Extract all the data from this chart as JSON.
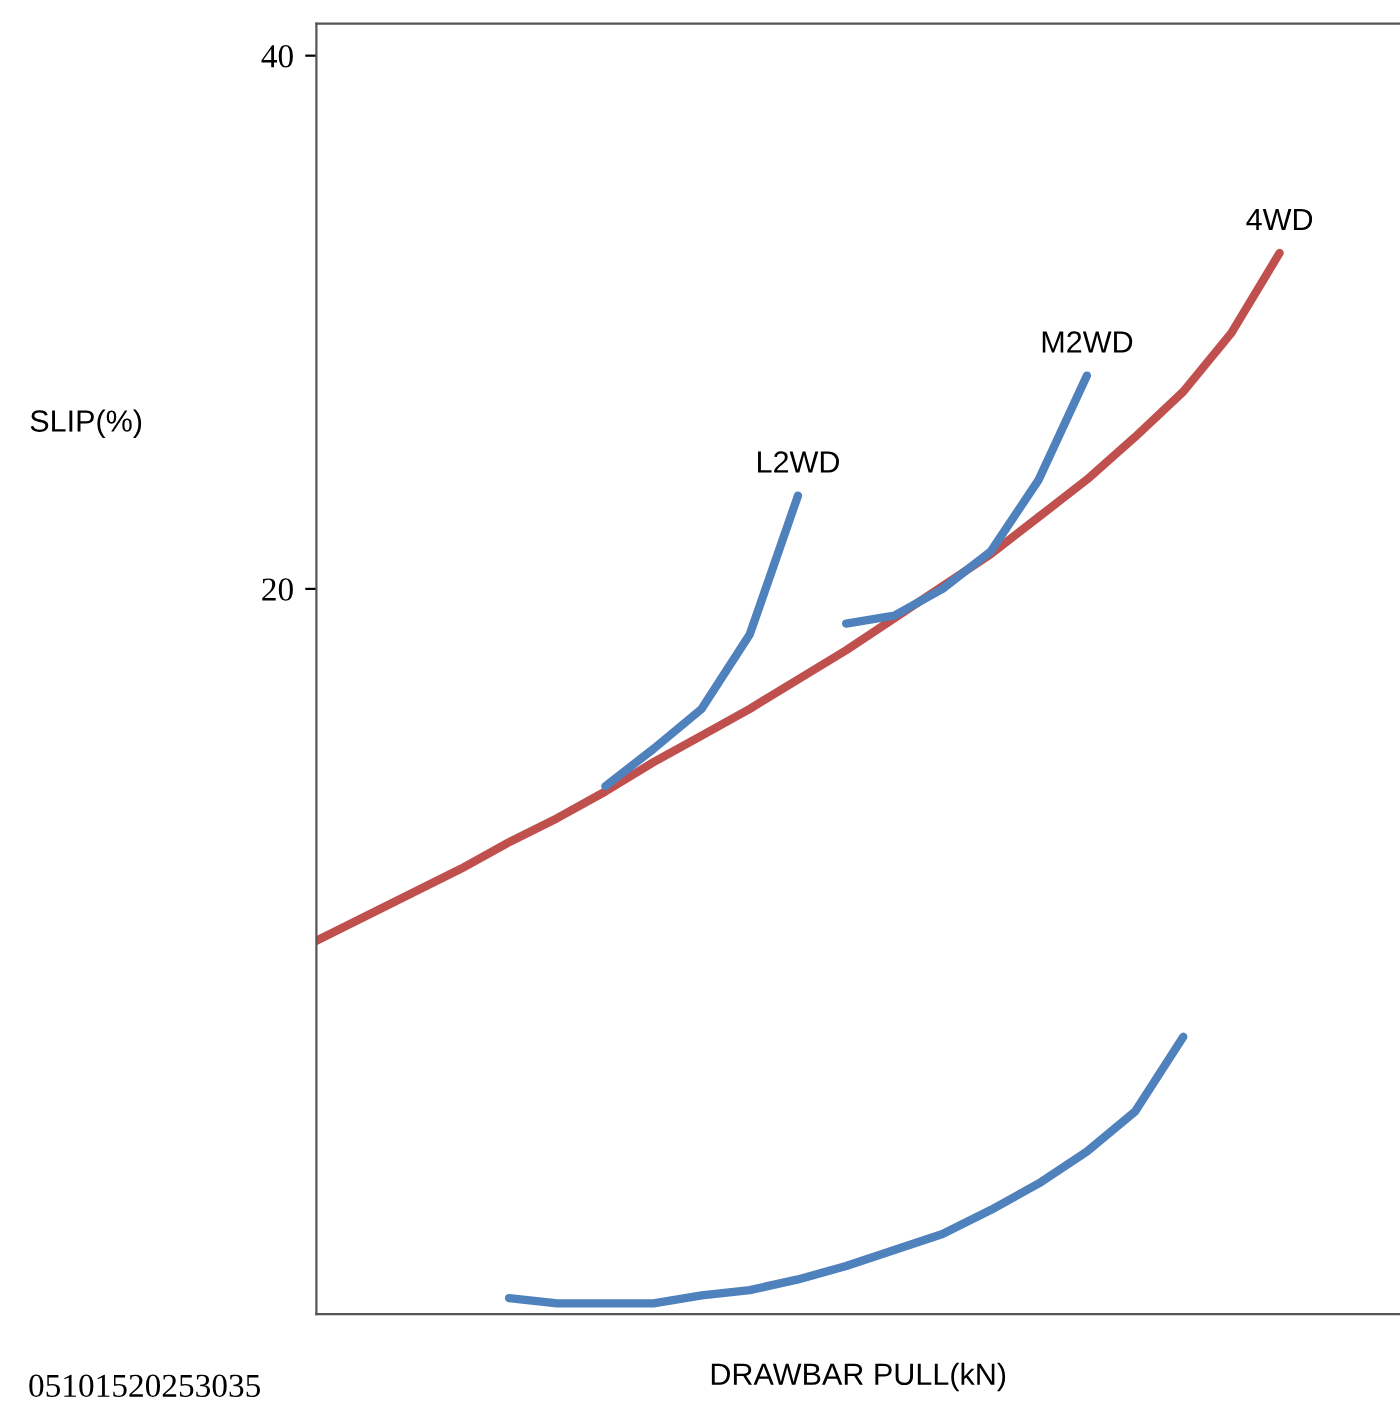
{
  "chart_data": {
    "type": "line",
    "xlabel": "DRAWBAR PULL(kN)",
    "ylabel": "SLIP(%)",
    "categories": [
      null,
      null,
      null,
      null,
      null,
      null,
      null,
      null,
      null,
      null,
      null,
      null,
      null,
      null,
      null,
      null,
      null,
      null,
      null,
      null,
      null,
      null,
      null
    ],
    "ylim": [
      -7.2,
      41.2
    ],
    "yticks": [
      20,
      40
    ],
    "grid": false,
    "legend": false,
    "marker": "none",
    "line_style": "solid",
    "annotations": [
      "05101520253035"
    ],
    "series": [
      {
        "name": "4WD",
        "color": "#c0504d",
        "values": [
          6.8,
          7.7,
          8.6,
          9.5,
          10.5,
          11.4,
          12.4,
          13.5,
          14.5,
          15.5,
          16.6,
          17.7,
          18.9,
          20.1,
          21.3,
          22.7,
          24.1,
          25.7,
          27.4,
          29.6,
          32.6,
          null,
          null
        ]
      },
      {
        "name": "L2WD",
        "color": "#4f81bd",
        "values": [
          null,
          null,
          null,
          null,
          null,
          null,
          12.6,
          14.0,
          15.5,
          18.3,
          23.5,
          null,
          null,
          null,
          null,
          null,
          null,
          null,
          null,
          null,
          null,
          null,
          null
        ]
      },
      {
        "name": "M2WD",
        "color": "#4f81bd",
        "values": [
          null,
          null,
          null,
          null,
          null,
          null,
          null,
          null,
          null,
          null,
          null,
          18.7,
          19.0,
          20.0,
          21.4,
          24.1,
          28.0,
          null,
          null,
          null,
          null,
          null,
          null
        ]
      },
      {
        "color": "#4f81bd",
        "values": [
          null,
          null,
          null,
          null,
          -6.6,
          -6.8,
          -6.8,
          -6.8,
          -6.5,
          -6.3,
          -5.9,
          -5.4,
          -4.8,
          -4.2,
          -3.3,
          -2.3,
          -1.1,
          0.4,
          3.2,
          null,
          null,
          null,
          null
        ]
      }
    ]
  }
}
